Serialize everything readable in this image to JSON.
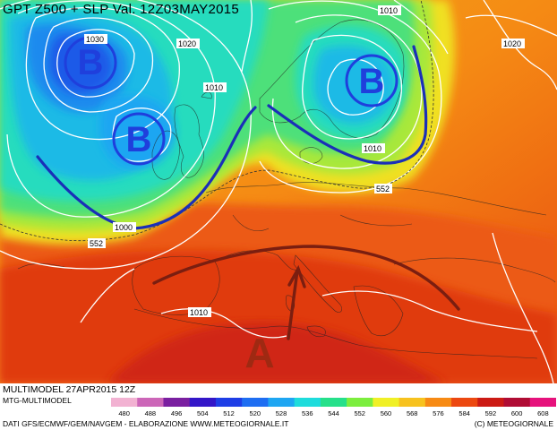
{
  "title": "GPT Z500 + SLP Val. 12Z03MAY2015",
  "footer": {
    "model_run": "MULTIMODEL 27APR2015 12Z",
    "model_id": "MTG-MULTIMODEL",
    "sources": "DATI GFS/ECMWF/GEM/NAVGEM - ELABORAZIONE WWW.METEOGIORNALE.IT",
    "copyright": "(C) METEOGIORNALE"
  },
  "color_scale": {
    "values": [
      "480",
      "488",
      "496",
      "504",
      "512",
      "520",
      "528",
      "536",
      "544",
      "552",
      "560",
      "568",
      "576",
      "584",
      "592",
      "600",
      "608"
    ],
    "colors": [
      "#f2b2d2",
      "#cc66b8",
      "#7a1fa0",
      "#3316c8",
      "#1e3ee6",
      "#1e6ef2",
      "#1ea6f2",
      "#1edcdc",
      "#26e08a",
      "#7cee3e",
      "#f0f026",
      "#f7c21e",
      "#f78a14",
      "#ec4810",
      "#cc1a14",
      "#b00c34",
      "#e6127c"
    ]
  },
  "pressure_labels": [
    "1020",
    "1010",
    "1020",
    "1010",
    "1000",
    "1010",
    "1010",
    "1020",
    "1030"
  ],
  "height_labels": [
    "552",
    "552"
  ],
  "systems": [
    {
      "letter": "B",
      "kind": "low"
    },
    {
      "letter": "B",
      "kind": "low"
    },
    {
      "letter": "B",
      "kind": "low"
    },
    {
      "letter": "A",
      "kind": "high"
    }
  ],
  "icons": [
    "trough-axis",
    "ridge-axis",
    "flow-arrow"
  ]
}
